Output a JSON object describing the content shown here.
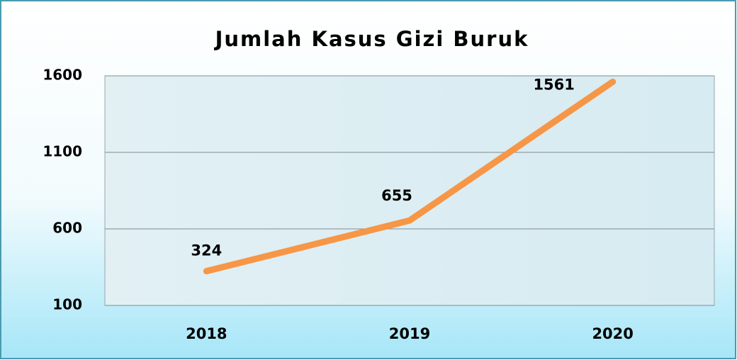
{
  "chart_data": {
    "type": "line",
    "title": "Jumlah Kasus Gizi Buruk",
    "categories": [
      "2018",
      "2019",
      "2020"
    ],
    "values": [
      324,
      655,
      1561
    ],
    "color": "#f79646",
    "ylim": [
      100,
      1600
    ],
    "yticks": [
      100,
      600,
      1100,
      1600
    ],
    "grid": true
  }
}
